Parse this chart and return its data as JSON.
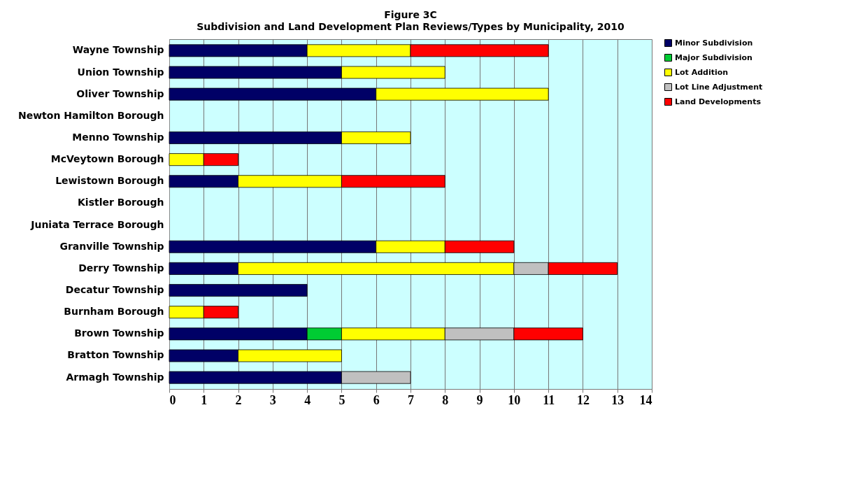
{
  "chart_data": {
    "type": "bar",
    "title": "Figure 3C",
    "subtitle": "Subdivision and Land Development Plan Reviews/Types by Municipality, 2010",
    "orientation": "horizontal",
    "stacked": true,
    "categories": [
      "Wayne Township",
      "Union Township",
      "Oliver Township",
      "Newton Hamilton Borough",
      "Menno Township",
      "McVeytown Borough",
      "Lewistown Borough",
      "Kistler Borough",
      "Juniata Terrace Borough",
      "Granville Township",
      "Derry Township",
      "Decatur Township",
      "Burnham Borough",
      "Brown Township",
      "Bratton Township",
      "Armagh Township"
    ],
    "series": [
      {
        "name": "Minor Subdivision",
        "color": "#000066",
        "values": [
          4,
          5,
          6,
          0,
          5,
          0,
          2,
          0,
          0,
          6,
          2,
          4,
          0,
          4,
          2,
          5
        ]
      },
      {
        "name": "Major Subdivision",
        "color": "#00cc33",
        "values": [
          0,
          0,
          0,
          0,
          0,
          0,
          0,
          0,
          0,
          0,
          0,
          0,
          0,
          1,
          0,
          0
        ]
      },
      {
        "name": "Lot Addition",
        "color": "#ffff00",
        "values": [
          3,
          3,
          5,
          0,
          2,
          1,
          3,
          0,
          0,
          2,
          8,
          0,
          1,
          3,
          3,
          0
        ]
      },
      {
        "name": "Lot Line Adjustment",
        "color": "#c0c0c0",
        "values": [
          0,
          0,
          0,
          0,
          0,
          0,
          0,
          0,
          0,
          0,
          1,
          0,
          0,
          2,
          0,
          2
        ]
      },
      {
        "name": "Land Developments",
        "color": "#ff0000",
        "values": [
          4,
          0,
          0,
          0,
          0,
          1,
          3,
          0,
          0,
          2,
          2,
          0,
          1,
          2,
          0,
          0
        ]
      }
    ],
    "xlim": [
      0,
      14
    ],
    "xticks": [
      0,
      1,
      2,
      3,
      4,
      5,
      6,
      7,
      8,
      9,
      10,
      11,
      12,
      13,
      14
    ],
    "grid": "x",
    "legend": "right"
  }
}
